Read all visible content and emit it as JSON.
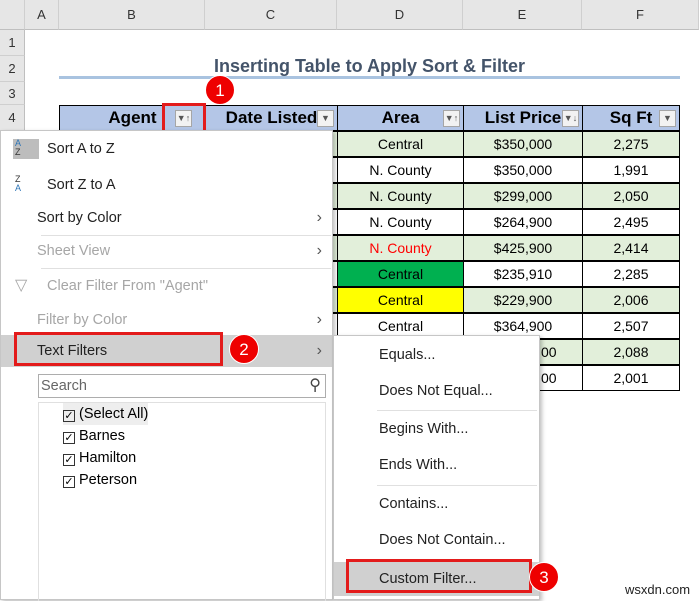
{
  "columns": [
    "A",
    "B",
    "C",
    "D",
    "E",
    "F"
  ],
  "rows": [
    "1",
    "2",
    "3",
    "4"
  ],
  "title": "Inserting Table to Apply Sort & Filter",
  "headers": [
    "Agent",
    "Date Listed",
    "Area",
    "List Price",
    "Sq Ft"
  ],
  "table": {
    "area": [
      "Central",
      "N. County",
      "N. County",
      "N. County",
      "N. County",
      "Central",
      "Central",
      "Central",
      "",
      ""
    ],
    "price": [
      "$350,000",
      "$350,000",
      "$299,000",
      "$264,900",
      "$425,900",
      "$235,910",
      "$229,900",
      "$364,900",
      "00",
      "00"
    ],
    "sqft": [
      "2,275",
      "1,991",
      "2,050",
      "2,495",
      "2,414",
      "2,285",
      "2,006",
      "2,507",
      "2,088",
      "2,001"
    ]
  },
  "colors": {
    "header_fill": "#b4c6e7",
    "band_fill": "#e2efda",
    "green_fill": "#00b050",
    "yellow_fill": "#ffff00",
    "red_text": "#ff0000",
    "annotation": "#e31b1b"
  },
  "menu": {
    "sort_az": "Sort A to Z",
    "sort_za": "Sort Z to A",
    "sort_color": "Sort by Color",
    "sheet_view": "Sheet View",
    "clear_filter": "Clear Filter From \"Agent\"",
    "filter_color": "Filter by Color",
    "text_filters": "Text Filters",
    "search_placeholder": "Search",
    "list": [
      "(Select All)",
      "Barnes",
      "Hamilton",
      "Peterson"
    ]
  },
  "submenu": [
    "Equals...",
    "Does Not Equal...",
    "Begins With...",
    "Ends With...",
    "Contains...",
    "Does Not Contain...",
    "Custom Filter..."
  ],
  "badges": [
    "1",
    "2",
    "3"
  ],
  "watermark": "wsxdn.com"
}
